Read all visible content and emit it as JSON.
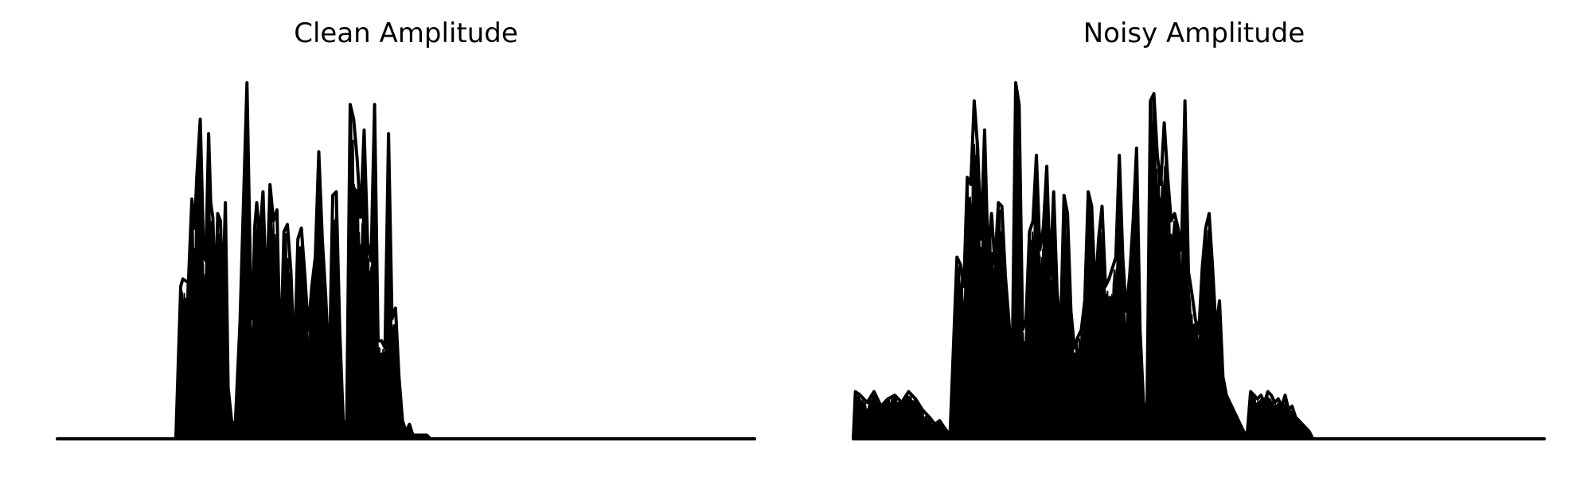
{
  "chart_data": [
    {
      "type": "area",
      "title": "Clean Amplitude",
      "xlabel": "",
      "ylabel": "",
      "axes_visible": false,
      "grid": false,
      "legend": "none",
      "color": "#000000",
      "x_range": [
        0,
        1
      ],
      "ylim": [
        0,
        1
      ],
      "series": [
        {
          "x": [
            0.0,
            0.17,
            0.177,
            0.18,
            0.188,
            0.193,
            0.197,
            0.2,
            0.205,
            0.21,
            0.213,
            0.217,
            0.22,
            0.223,
            0.227,
            0.23,
            0.234,
            0.237,
            0.241,
            0.245,
            0.25,
            0.255,
            0.262,
            0.272,
            0.277,
            0.28,
            0.283,
            0.286,
            0.29,
            0.295,
            0.3,
            0.305,
            0.31,
            0.315,
            0.32,
            0.325,
            0.33,
            0.335,
            0.34,
            0.345,
            0.35,
            0.355,
            0.36,
            0.365,
            0.37,
            0.375,
            0.38,
            0.385,
            0.39,
            0.395,
            0.4,
            0.405,
            0.41,
            0.415,
            0.42,
            0.425,
            0.43,
            0.435,
            0.44,
            0.445,
            0.45,
            0.455,
            0.46,
            0.465,
            0.47,
            0.475,
            0.48,
            0.485,
            0.49,
            0.495,
            0.5,
            0.505,
            0.51,
            0.515,
            0.52,
            0.525,
            0.53,
            0.535,
            0.54,
            0.545,
            0.55,
            0.555,
            0.56,
            0.565,
            0.57,
            0.575,
            0.58,
            0.585,
            0.59,
            0.595,
            0.6,
            0.605,
            0.61,
            0.615,
            0.62,
            0.625,
            0.63,
            0.635,
            0.64,
            0.645,
            0.65,
            0.655,
            0.66,
            0.665,
            0.67,
            0.675,
            0.68,
            0.685,
            0.69,
            0.695,
            0.7,
            0.705,
            0.71,
            0.715,
            0.72,
            0.725,
            0.73,
            0.735,
            0.74,
            0.745,
            0.75,
            0.755,
            0.76,
            0.765,
            0.77,
            0.775,
            0.78,
            0.785,
            0.79,
            0.795,
            0.8,
            1.0
          ],
          "values": [
            0.0,
            0.0,
            0.42,
            0.44,
            0.43,
            0.66,
            0.58,
            0.72,
            0.88,
            0.5,
            0.49,
            0.84,
            0.65,
            0.61,
            0.38,
            0.62,
            0.6,
            0.37,
            0.65,
            0.14,
            0.05,
            0.03,
            0.32,
            0.98,
            0.45,
            0.33,
            0.58,
            0.65,
            0.55,
            0.68,
            0.38,
            0.7,
            0.6,
            0.63,
            0.2,
            0.57,
            0.59,
            0.46,
            0.21,
            0.55,
            0.58,
            0.45,
            0.3,
            0.42,
            0.5,
            0.79,
            0.55,
            0.39,
            0.18,
            0.67,
            0.68,
            0.3,
            0.05,
            0.04,
            0.92,
            0.88,
            0.77,
            0.61,
            0.85,
            0.54,
            0.49,
            0.92,
            0.27,
            0.27,
            0.25,
            0.84,
            0.33,
            0.36,
            0.17,
            0.05,
            0.02,
            0.04,
            0.01,
            0.01,
            0.01,
            0.01,
            0.01,
            0.0,
            0.0,
            0.0,
            0.0,
            0.0,
            0.0,
            0.0,
            0.0,
            0.0,
            0.0,
            0.0,
            0.0,
            0.0,
            0.0,
            0.0,
            0.0,
            0.0,
            0.0,
            0.0,
            0.0,
            0.0,
            0.0,
            0.0,
            0.0,
            0.0,
            0.0,
            0.0,
            0.0,
            0.0,
            0.0,
            0.0,
            0.0,
            0.0,
            0.0,
            0.0,
            0.0,
            0.0,
            0.0,
            0.0,
            0.0,
            0.0,
            0.0,
            0.0,
            0.0,
            0.0,
            0.0,
            0.0,
            0.0,
            0.0,
            0.0,
            0.0,
            0.0,
            0.0,
            0.0,
            0.0
          ]
        }
      ]
    },
    {
      "type": "area",
      "title": "Noisy Amplitude",
      "xlabel": "",
      "ylabel": "",
      "axes_visible": false,
      "grid": false,
      "legend": "none",
      "color": "#000000",
      "x_range": [
        0,
        1
      ],
      "ylim": [
        0,
        1
      ],
      "series": [
        {
          "x": [
            0.0,
            0.003,
            0.01,
            0.02,
            0.03,
            0.04,
            0.05,
            0.06,
            0.07,
            0.08,
            0.09,
            0.1,
            0.11,
            0.118,
            0.125,
            0.132,
            0.14,
            0.15,
            0.155,
            0.16,
            0.165,
            0.17,
            0.175,
            0.18,
            0.185,
            0.19,
            0.195,
            0.2,
            0.205,
            0.21,
            0.215,
            0.22,
            0.225,
            0.23,
            0.235,
            0.24,
            0.245,
            0.25,
            0.255,
            0.26,
            0.265,
            0.27,
            0.275,
            0.28,
            0.285,
            0.29,
            0.295,
            0.3,
            0.305,
            0.31,
            0.315,
            0.32,
            0.325,
            0.33,
            0.335,
            0.34,
            0.345,
            0.35,
            0.355,
            0.36,
            0.365,
            0.37,
            0.375,
            0.38,
            0.385,
            0.39,
            0.395,
            0.4,
            0.405,
            0.41,
            0.415,
            0.42,
            0.425,
            0.43,
            0.435,
            0.44,
            0.445,
            0.45,
            0.455,
            0.46,
            0.465,
            0.47,
            0.475,
            0.48,
            0.485,
            0.49,
            0.495,
            0.5,
            0.505,
            0.51,
            0.515,
            0.52,
            0.525,
            0.53,
            0.535,
            0.54,
            0.545,
            0.55,
            0.555,
            0.56,
            0.565,
            0.57,
            0.575,
            0.58,
            0.585,
            0.59,
            0.595,
            0.6,
            0.605,
            0.61,
            0.615,
            0.62,
            0.625,
            0.63,
            0.635,
            0.64,
            0.645,
            0.65,
            0.655,
            0.66,
            0.665,
            0.67,
            0.675,
            0.68,
            0.685,
            0.69,
            0.695,
            0.7,
            0.705,
            0.71,
            0.715,
            0.72,
            0.725,
            0.73,
            0.735,
            0.74,
            0.745,
            0.75,
            0.755,
            0.76,
            0.765,
            0.77,
            0.775,
            0.78,
            0.785,
            0.79,
            0.795,
            0.8,
            0.805,
            0.81,
            0.815,
            0.82,
            0.825,
            0.83,
            0.835,
            0.84,
            0.845,
            0.85,
            0.855,
            0.86,
            0.865,
            0.87,
            0.875,
            0.88,
            0.885,
            0.89,
            0.895,
            0.9,
            0.905,
            0.91,
            0.915,
            0.92,
            0.925,
            0.93,
            0.935,
            0.94,
            0.945,
            0.95,
            0.955,
            0.96,
            0.965,
            0.97,
            0.975,
            0.98,
            0.985,
            0.99,
            0.995,
            1.0
          ],
          "values": [
            0.0,
            0.13,
            0.12,
            0.1,
            0.13,
            0.09,
            0.11,
            0.12,
            0.1,
            0.13,
            0.11,
            0.08,
            0.06,
            0.04,
            0.05,
            0.03,
            0.01,
            0.5,
            0.48,
            0.42,
            0.72,
            0.7,
            0.93,
            0.8,
            0.55,
            0.85,
            0.5,
            0.62,
            0.48,
            0.65,
            0.64,
            0.45,
            0.33,
            0.2,
            0.98,
            0.92,
            0.3,
            0.33,
            0.57,
            0.6,
            0.78,
            0.52,
            0.58,
            0.75,
            0.45,
            0.68,
            0.4,
            0.3,
            0.67,
            0.62,
            0.35,
            0.25,
            0.28,
            0.3,
            0.38,
            0.68,
            0.64,
            0.4,
            0.55,
            0.64,
            0.42,
            0.44,
            0.47,
            0.5,
            0.78,
            0.5,
            0.35,
            0.45,
            0.6,
            0.8,
            0.3,
            0.1,
            0.07,
            0.93,
            0.95,
            0.78,
            0.7,
            0.87,
            0.72,
            0.6,
            0.62,
            0.58,
            0.52,
            0.93,
            0.46,
            0.4,
            0.33,
            0.29,
            0.47,
            0.58,
            0.62,
            0.47,
            0.3,
            0.38,
            0.17,
            0.12,
            0.1,
            0.08,
            0.06,
            0.04,
            0.02,
            0.01,
            0.13,
            0.12,
            0.11,
            0.12,
            0.1,
            0.13,
            0.12,
            0.1,
            0.11,
            0.09,
            0.12,
            0.08,
            0.09,
            0.06,
            0.05,
            0.04,
            0.03,
            0.02,
            0.0,
            0.0,
            0.0,
            0.0,
            0.0,
            0.0,
            0.0,
            0.0,
            0.0,
            0.0,
            0.0,
            0.0,
            0.0,
            0.0,
            0.0,
            0.0,
            0.0,
            0.0,
            0.0,
            0.0,
            0.0,
            0.0,
            0.0,
            0.0,
            0.0,
            0.0,
            0.0,
            0.0,
            0.0,
            0.0,
            0.0,
            0.0,
            0.0,
            0.0,
            0.0,
            0.0,
            0.0,
            0.0,
            0.0,
            0.0,
            0.0,
            0.0,
            0.0,
            0.0,
            0.0,
            0.0,
            0.0,
            0.0,
            0.0,
            0.0,
            0.0,
            0.0,
            0.0,
            0.0,
            0.0,
            0.0,
            0.0,
            0.0,
            0.0,
            0.0,
            0.0,
            0.0,
            0.0,
            0.0,
            0.0,
            0.0,
            0.0,
            0.0
          ]
        }
      ]
    }
  ]
}
